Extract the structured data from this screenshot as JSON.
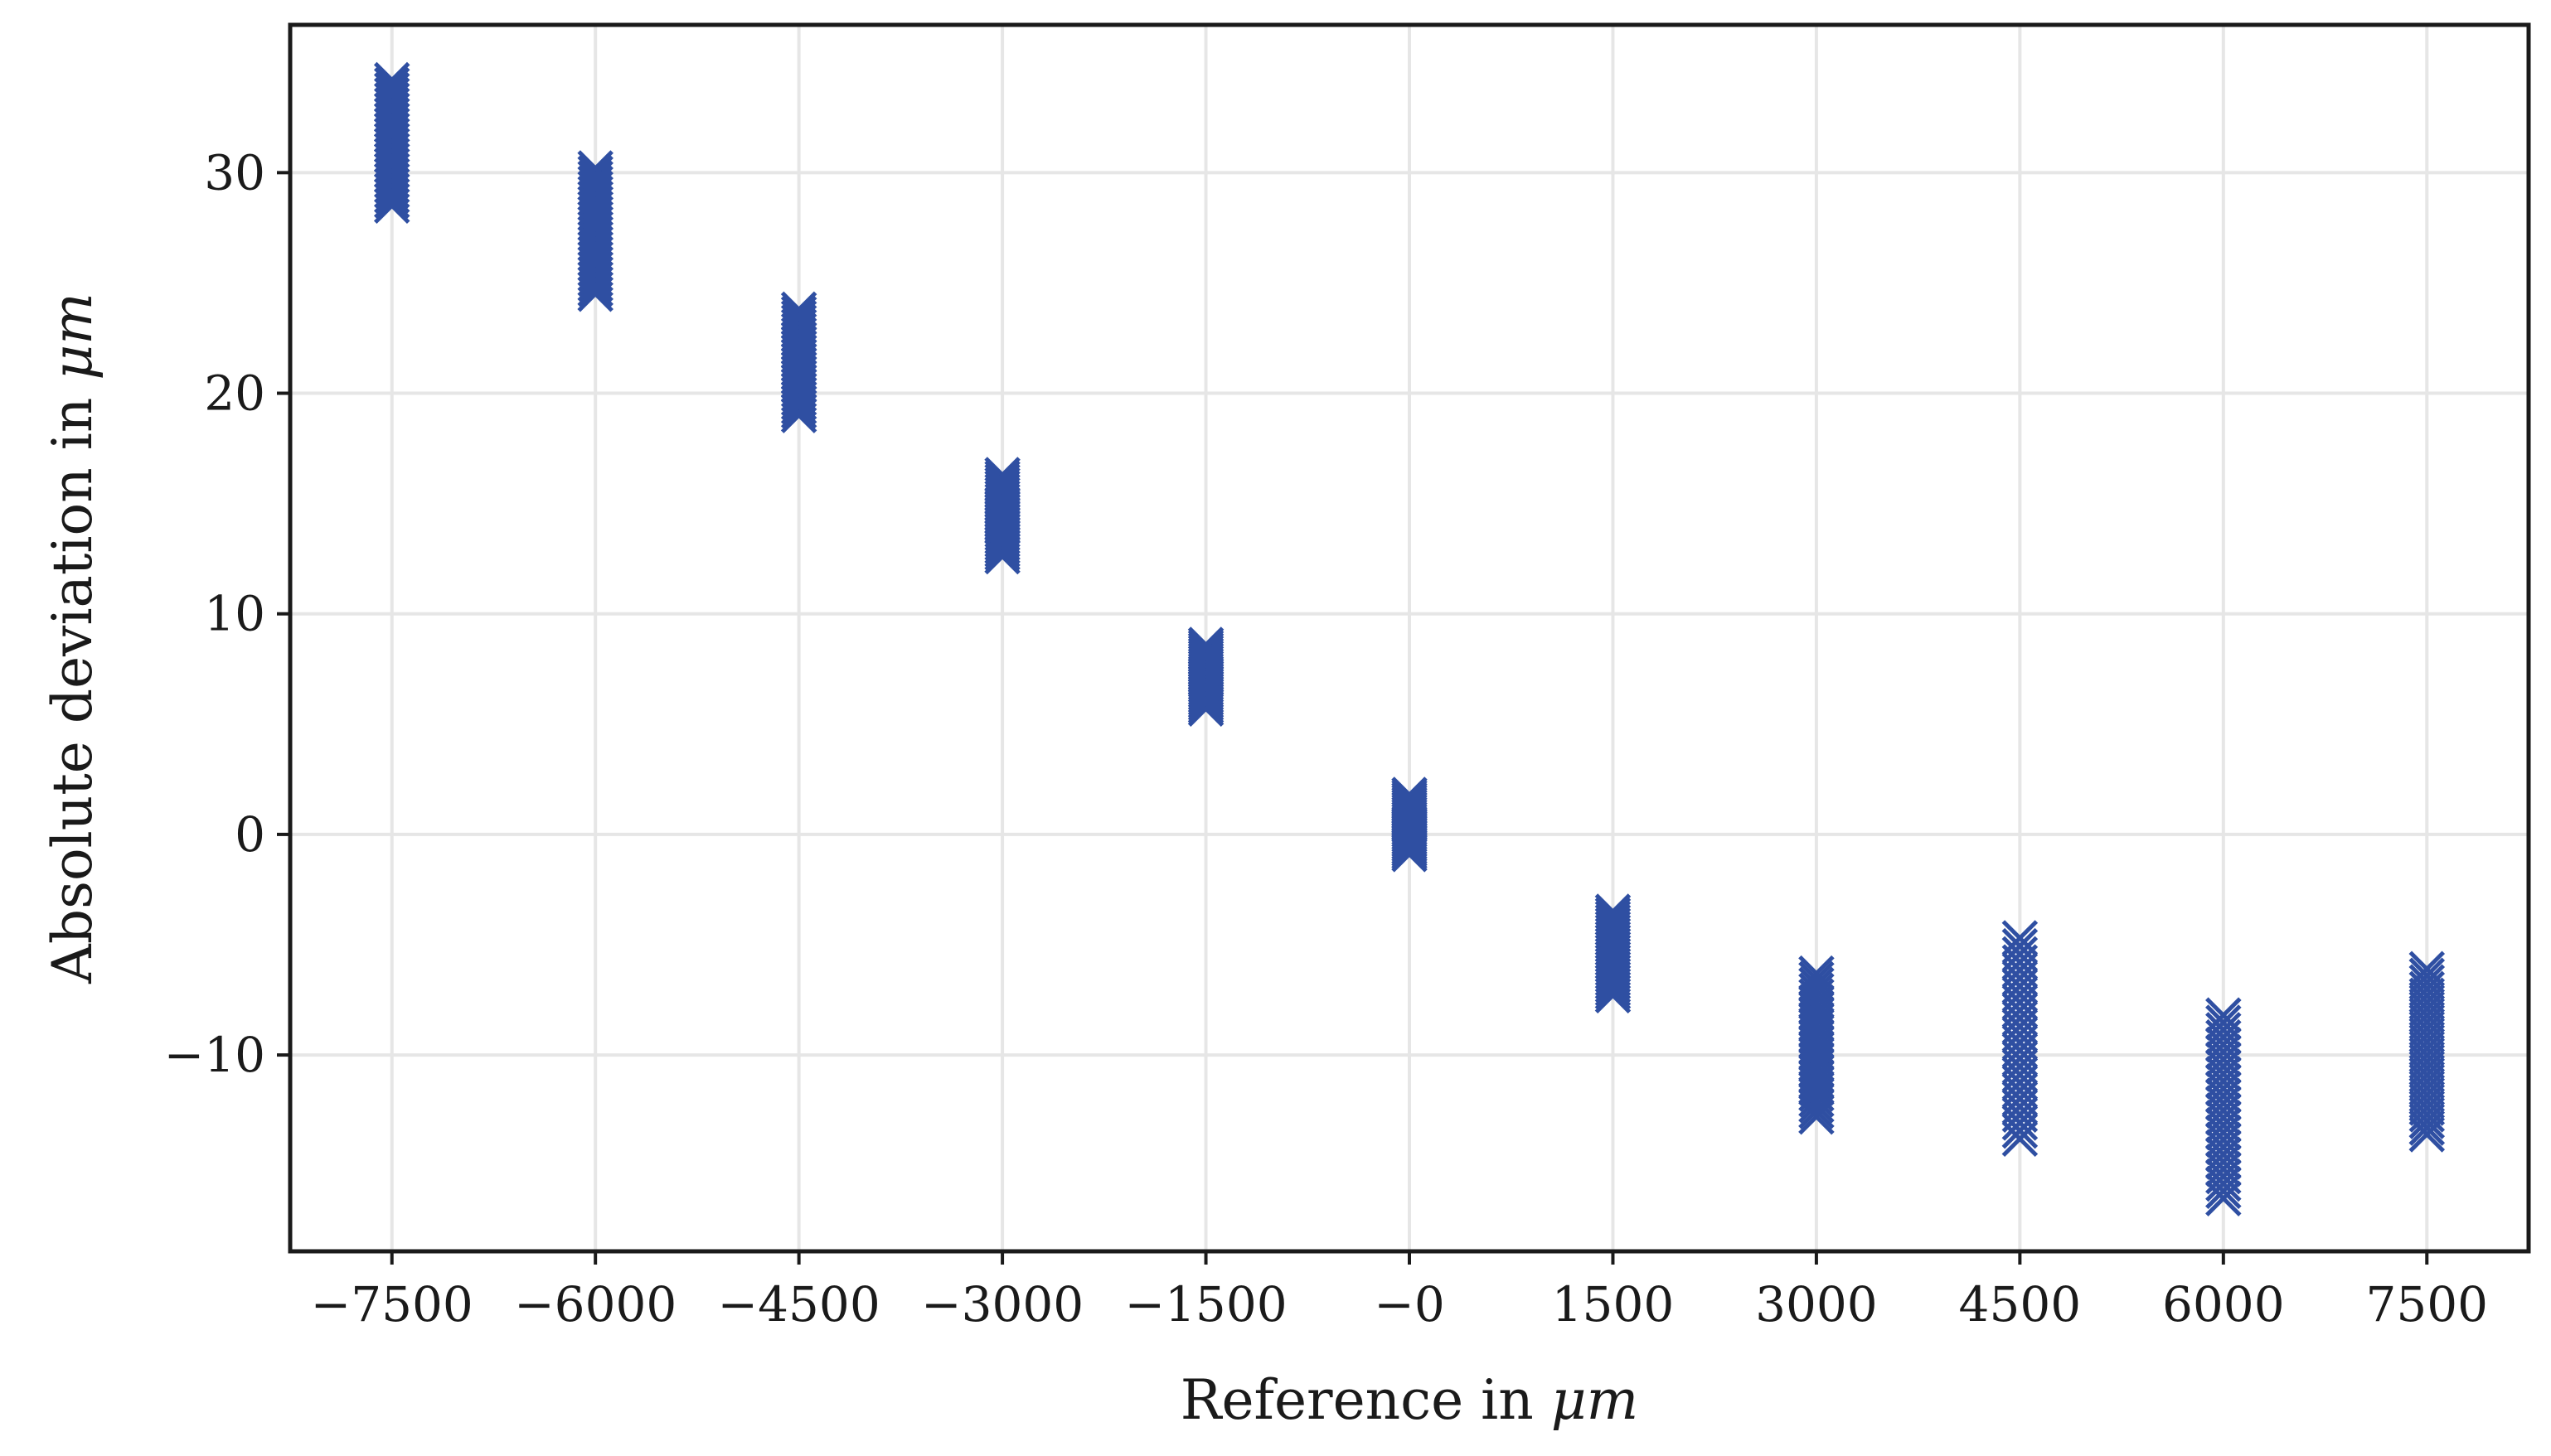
{
  "chart_data": {
    "type": "scatter",
    "title": "",
    "xlabel": {
      "prefix": "Reference in ",
      "unit": "μm"
    },
    "ylabel": {
      "prefix": "Absolute deviation in ",
      "unit": "μm"
    },
    "xlim": [
      -8250,
      8250
    ],
    "ylim": [
      -18.9,
      36.7
    ],
    "grid": true,
    "legend": "none",
    "marker": "x",
    "color": "#2f4fa2",
    "x_ticks": [
      {
        "value": -7500,
        "label": "−7500"
      },
      {
        "value": -6000,
        "label": "−6000"
      },
      {
        "value": -4500,
        "label": "−4500"
      },
      {
        "value": -3000,
        "label": "−3000"
      },
      {
        "value": -1500,
        "label": "−1500"
      },
      {
        "value": 0,
        "label": "−0"
      },
      {
        "value": 1500,
        "label": "1500"
      },
      {
        "value": 3000,
        "label": "3000"
      },
      {
        "value": 4500,
        "label": "4500"
      },
      {
        "value": 6000,
        "label": "6000"
      },
      {
        "value": 7500,
        "label": "7500"
      }
    ],
    "y_ticks": [
      {
        "value": 30,
        "label": "30"
      },
      {
        "value": 20,
        "label": "20"
      },
      {
        "value": 10,
        "label": "10"
      },
      {
        "value": 0,
        "label": "0"
      },
      {
        "value": -10,
        "label": "−10"
      }
    ],
    "groups": [
      {
        "x": -7500,
        "y_min": 28.5,
        "y_max": 34.2
      },
      {
        "x": -6000,
        "y_min": 24.5,
        "y_max": 30.2
      },
      {
        "x": -4500,
        "y_min": 19.0,
        "y_max": 23.8
      },
      {
        "x": -3000,
        "y_min": 12.6,
        "y_max": 16.3
      },
      {
        "x": -1500,
        "y_min": 5.7,
        "y_max": 8.6
      },
      {
        "x": 0,
        "y_min": -0.9,
        "y_max": 1.8
      },
      {
        "x": 1500,
        "y_min": -7.3,
        "y_max": -3.5
      },
      {
        "x": 3000,
        "y_min": -12.8,
        "y_max": -6.3
      },
      {
        "x": 4500,
        "y_min": -13.8,
        "y_max": -4.7
      },
      {
        "x": 6000,
        "y_min": -16.5,
        "y_max": -8.2
      },
      {
        "x": 7500,
        "y_min": -13.6,
        "y_max": -6.1
      }
    ]
  }
}
